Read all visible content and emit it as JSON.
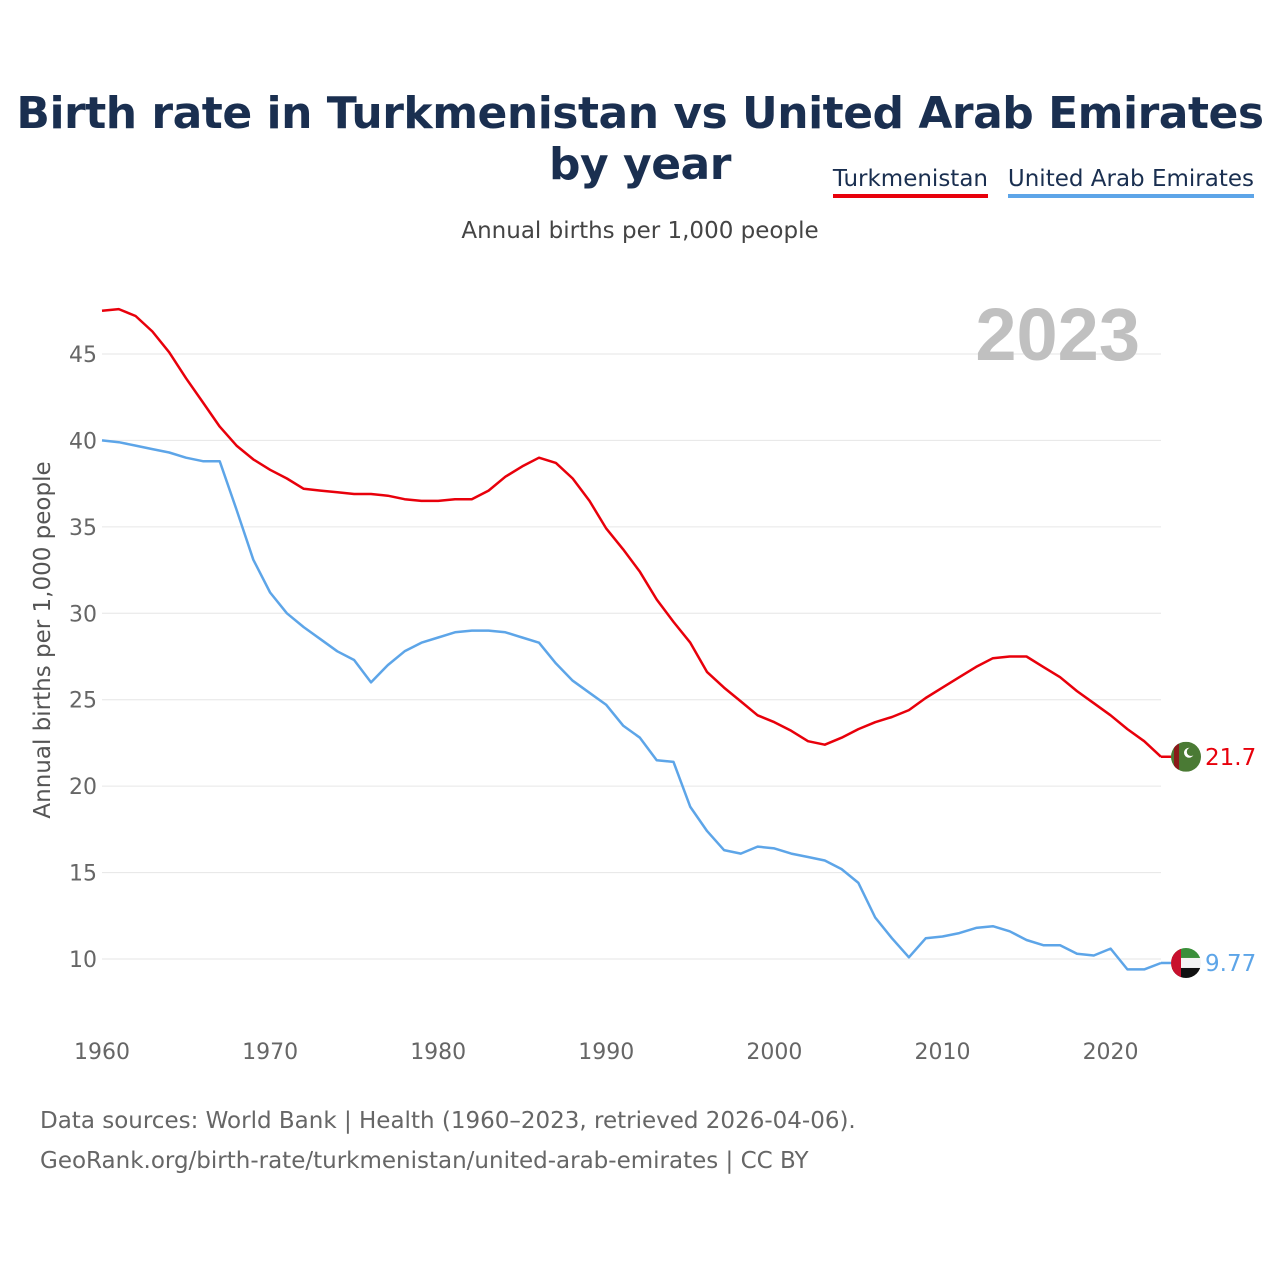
{
  "title": "Birth rate in Turkmenistan vs United Arab Emirates by year",
  "subtitle": "Annual births per 1,000 people",
  "footer": {
    "line1": "Data sources: World Bank | Health (1960–2023, retrieved 2026-04-06).",
    "line2": "GeoRank.org/birth-rate/turkmenistan/united-arab-emirates | CC BY"
  },
  "chart_data": {
    "type": "line",
    "year_label": "2023",
    "ylabel": "Annual births per 1,000 people",
    "xlabel": "",
    "xlim": [
      1960,
      2023
    ],
    "ylim": [
      7,
      48
    ],
    "yticks": [
      10,
      15,
      20,
      25,
      30,
      35,
      40,
      45
    ],
    "xticks": [
      1960,
      1970,
      1980,
      1990,
      2000,
      2010,
      2020
    ],
    "legend_position": "top-right",
    "x": [
      1960,
      1961,
      1962,
      1963,
      1964,
      1965,
      1966,
      1967,
      1968,
      1969,
      1970,
      1971,
      1972,
      1973,
      1974,
      1975,
      1976,
      1977,
      1978,
      1979,
      1980,
      1981,
      1982,
      1983,
      1984,
      1985,
      1986,
      1987,
      1988,
      1989,
      1990,
      1991,
      1992,
      1993,
      1994,
      1995,
      1996,
      1997,
      1998,
      1999,
      2000,
      2001,
      2002,
      2003,
      2004,
      2005,
      2006,
      2007,
      2008,
      2009,
      2010,
      2011,
      2012,
      2013,
      2014,
      2015,
      2016,
      2017,
      2018,
      2019,
      2020,
      2021,
      2022,
      2023
    ],
    "series": [
      {
        "name": "Turkmenistan",
        "color": "#e8000b",
        "end_label": "21.7",
        "values": [
          47.5,
          47.6,
          47.2,
          46.3,
          45.1,
          43.6,
          42.2,
          40.8,
          39.7,
          38.9,
          38.3,
          37.8,
          37.2,
          37.1,
          37.0,
          36.9,
          36.9,
          36.8,
          36.6,
          36.5,
          36.5,
          36.6,
          36.6,
          37.1,
          37.9,
          38.5,
          39.0,
          38.7,
          37.8,
          36.5,
          34.9,
          33.7,
          32.4,
          30.8,
          29.5,
          28.3,
          26.6,
          25.7,
          24.9,
          24.1,
          23.7,
          23.2,
          22.6,
          22.4,
          22.8,
          23.3,
          23.7,
          24.0,
          24.4,
          25.1,
          25.7,
          26.3,
          26.9,
          27.4,
          27.5,
          27.5,
          26.9,
          26.3,
          25.5,
          24.8,
          24.1,
          23.3,
          22.6,
          21.7
        ]
      },
      {
        "name": "United Arab Emirates",
        "color": "#5da5e8",
        "end_label": "9.77",
        "values": [
          40.0,
          39.9,
          39.7,
          39.5,
          39.3,
          39.0,
          38.8,
          38.8,
          36.0,
          33.1,
          31.2,
          30.0,
          29.2,
          28.5,
          27.8,
          27.3,
          26.0,
          27.0,
          27.8,
          28.3,
          28.6,
          28.9,
          29.0,
          29.0,
          28.9,
          28.6,
          28.3,
          27.1,
          26.1,
          25.4,
          24.7,
          23.5,
          22.8,
          21.5,
          21.4,
          18.8,
          17.4,
          16.3,
          16.1,
          16.5,
          16.4,
          16.1,
          15.9,
          15.7,
          15.2,
          14.4,
          12.4,
          11.2,
          10.1,
          11.2,
          11.3,
          11.5,
          11.8,
          11.9,
          11.6,
          11.1,
          10.8,
          10.8,
          10.3,
          10.2,
          10.6,
          9.4,
          9.4,
          9.77
        ]
      }
    ]
  }
}
